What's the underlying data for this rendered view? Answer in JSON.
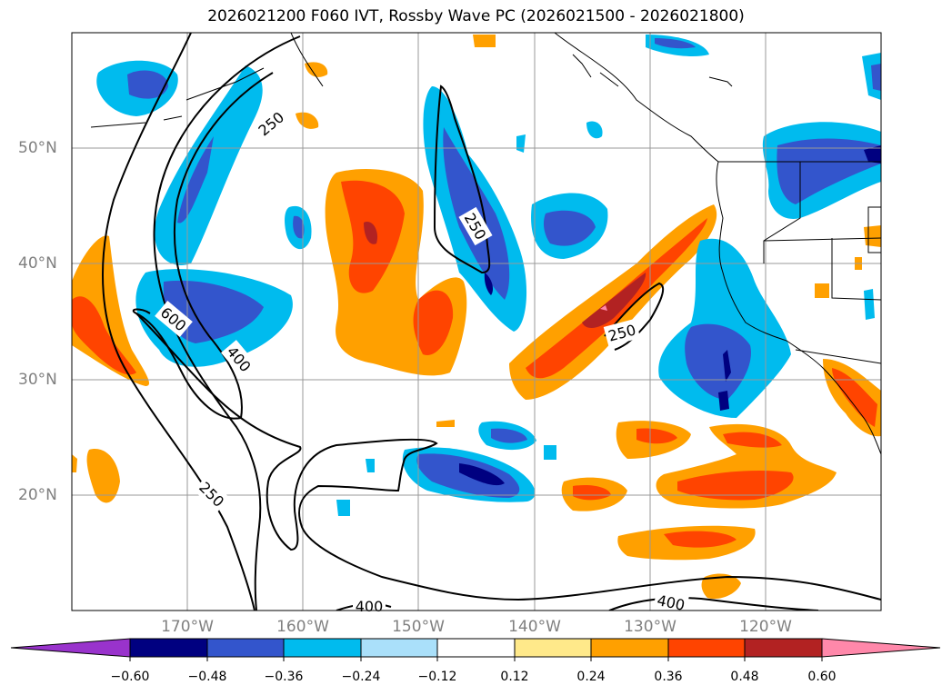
{
  "title": "2026021200 F060 IVT, Rossby Wave PC (2026021500 - 2026021800)",
  "lon_labels": [
    "170°W",
    "160°W",
    "150°W",
    "140°W",
    "130°W",
    "120°W"
  ],
  "lat_labels": [
    "50°N",
    "40°N",
    "30°N",
    "20°N"
  ],
  "contour_labels": [
    "250",
    "250",
    "600",
    "400",
    "250",
    "250",
    "400",
    "400"
  ],
  "colorbar": {
    "ticks": [
      "−0.60",
      "−0.48",
      "−0.36",
      "−0.24",
      "−0.12",
      "0.12",
      "0.24",
      "0.36",
      "0.48",
      "0.60"
    ],
    "colors": [
      "#9933cc",
      "#000080",
      "#3355cc",
      "#00bbee",
      "#aae0fa",
      "#ffffff",
      "#ffe98a",
      "#ffa000",
      "#ff4400",
      "#b22222",
      "#ff88aa"
    ]
  }
}
